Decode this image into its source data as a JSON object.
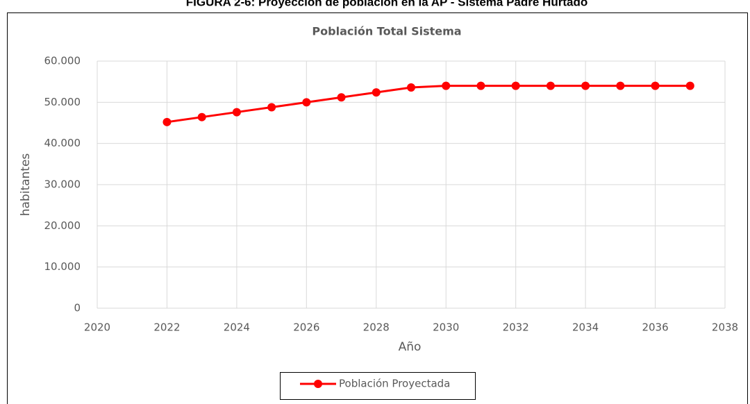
{
  "caption": "FIGURA 2-6: Proyección de población en la AP - Sistema Padre Hurtado",
  "chart_data": {
    "type": "line",
    "title": "Población Total  Sistema",
    "x_label": "Año",
    "y_label": "habitantes",
    "x": [
      2022,
      2023,
      2024,
      2025,
      2026,
      2027,
      2028,
      2029,
      2030,
      2031,
      2032,
      2033,
      2034,
      2035,
      2036,
      2037
    ],
    "series": [
      {
        "name": "Población Proyectada",
        "color": "#ff0000",
        "values": [
          45200,
          46400,
          47600,
          48800,
          50000,
          51200,
          52400,
          53600,
          54000,
          54000,
          54000,
          54000,
          54000,
          54000,
          54000,
          54000
        ]
      }
    ],
    "xlim": [
      2020,
      2038
    ],
    "xticks": [
      2020,
      2022,
      2024,
      2026,
      2028,
      2030,
      2032,
      2034,
      2036,
      2038
    ],
    "ylim": [
      0,
      60000
    ],
    "yticks": [
      0,
      {
        "value": 10000,
        "label": "10.000"
      },
      {
        "value": 20000,
        "label": "20.000"
      },
      {
        "value": 30000,
        "label": "30.000"
      },
      {
        "value": 40000,
        "label": "40.000"
      },
      {
        "value": 50000,
        "label": "50.000"
      },
      {
        "value": 60000,
        "label": "60.000"
      }
    ],
    "grid": true,
    "legend": "bottom"
  }
}
